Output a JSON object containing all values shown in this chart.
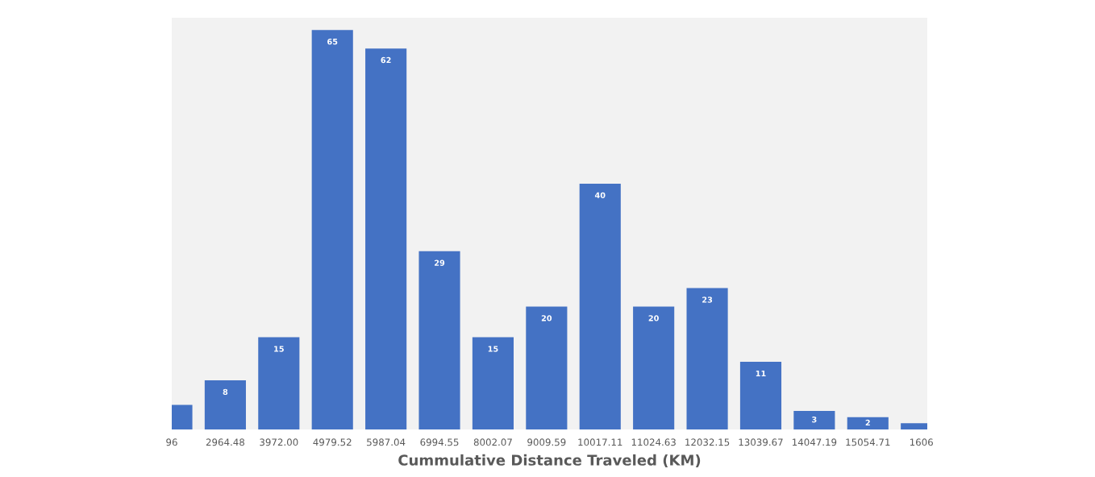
{
  "chart_data": {
    "type": "bar",
    "xlabel": "Cummulative Distance Traveled (KM)",
    "categories": [
      "96",
      "2964.48",
      "3972.00",
      "4979.52",
      "5987.04",
      "6994.55",
      "8002.07",
      "9009.59",
      "10017.11",
      "11024.63",
      "12032.15",
      "13039.67",
      "14047.19",
      "15054.71",
      "1606"
    ],
    "values": [
      4,
      8,
      15,
      65,
      62,
      29,
      15,
      20,
      40,
      20,
      23,
      11,
      3,
      2,
      1
    ],
    "value_labels": [
      null,
      "8",
      "15",
      "65",
      "62",
      "29",
      "15",
      "20",
      "40",
      "20",
      "23",
      "11",
      "3",
      "2",
      null
    ],
    "color": "#4472c4",
    "ylim": [
      0,
      67
    ],
    "tick_labels": "x",
    "grid": false,
    "legend": false
  }
}
